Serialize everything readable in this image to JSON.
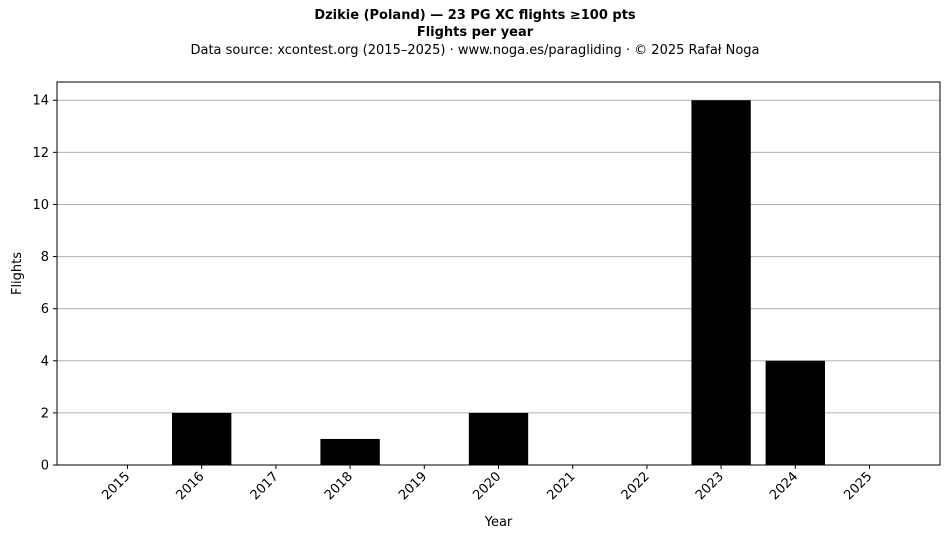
{
  "header": {
    "title": "Dzikie (Poland)  —  23 PG XC flights ≥100 pts",
    "subtitle": "Flights per year",
    "source": "Data source: xcontest.org (2015–2025)  ·  www.noga.es/paragliding  ·  © 2025 Rafał Noga"
  },
  "chart_data": {
    "type": "bar",
    "categories": [
      "2015",
      "2016",
      "2017",
      "2018",
      "2019",
      "2020",
      "2021",
      "2022",
      "2023",
      "2024",
      "2025"
    ],
    "values": [
      0,
      2,
      0,
      1,
      0,
      2,
      0,
      0,
      14,
      4,
      0
    ],
    "xlabel": "Year",
    "ylabel": "Flights",
    "ylim": [
      0,
      14.7
    ],
    "yticks": [
      0,
      2,
      4,
      6,
      8,
      10,
      12,
      14
    ],
    "grid": "y",
    "bar_color": "#000000",
    "grid_color": "#b0b0b0"
  }
}
